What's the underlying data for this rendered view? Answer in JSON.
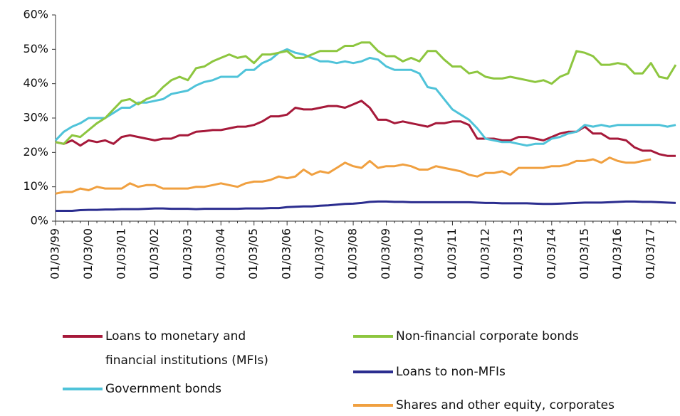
{
  "chart_data": {
    "type": "line",
    "categories": [
      "01/03/99",
      null,
      null,
      null,
      "01/03/00",
      null,
      null,
      null,
      "01/03/01",
      null,
      null,
      null,
      "01/03/02",
      null,
      null,
      null,
      "01/03/03",
      null,
      null,
      null,
      "01/03/04",
      null,
      null,
      null,
      "01/03/05",
      null,
      null,
      null,
      "01/03/06",
      null,
      null,
      null,
      "01/03/07",
      null,
      null,
      null,
      "01/03/08",
      null,
      null,
      null,
      "01/03/09",
      null,
      null,
      null,
      "01/03/10",
      null,
      null,
      null,
      "01/03/11",
      null,
      null,
      null,
      "01/03/12",
      null,
      null,
      null,
      "01/03/13",
      null,
      null,
      null,
      "01/03/14",
      null,
      null,
      null,
      "01/03/15",
      null,
      null,
      null,
      "01/03/16",
      null,
      null,
      null,
      "01/03/17",
      null,
      null,
      null
    ],
    "series": [
      {
        "name": "Loans to monetary and financial institutions (MFIs)",
        "color": "#a6193a",
        "values": [
          23,
          22.5,
          23.5,
          22,
          23.5,
          23,
          23.5,
          22.5,
          24.5,
          25,
          24.5,
          24,
          23.5,
          24,
          24,
          25,
          25,
          26,
          26.2,
          26.5,
          26.5,
          27,
          27.5,
          27.5,
          28,
          29,
          30.5,
          30.5,
          31,
          33,
          32.5,
          32.5,
          33,
          33.5,
          33.5,
          33,
          34,
          35,
          33,
          29.5,
          29.5,
          28.5,
          29,
          28.5,
          28,
          27.5,
          28.5,
          28.5,
          29,
          29,
          28,
          24,
          24,
          24,
          23.5,
          23.5,
          24.5,
          24.5,
          24,
          23.5,
          24.5,
          25.5,
          26,
          26,
          27.5,
          25.5,
          25.5,
          24,
          24,
          23.5,
          21.5,
          20.5,
          20.5,
          19.5,
          19,
          19
        ]
      },
      {
        "name": "Government bonds",
        "color": "#4fc3d9",
        "values": [
          23.5,
          26,
          27.5,
          28.5,
          30,
          30,
          30,
          31.5,
          33,
          33,
          34.5,
          34.5,
          35,
          35.5,
          37,
          37.5,
          38,
          39.5,
          40.5,
          41,
          42,
          42,
          42,
          44,
          44,
          46,
          47,
          49,
          50,
          49,
          48.5,
          47.5,
          46.5,
          46.5,
          46,
          46.5,
          46,
          46.5,
          47.5,
          47,
          45,
          44,
          44,
          44,
          43,
          39,
          38.5,
          35.5,
          32.5,
          31,
          29.5,
          27,
          24,
          23.5,
          23,
          23,
          22.5,
          22,
          22.5,
          22.5,
          24,
          24.5,
          25.5,
          26,
          28,
          27.5,
          28,
          27.5,
          28,
          28,
          28,
          28,
          28,
          28,
          27.5,
          28
        ]
      },
      {
        "name": "Non-financial corporate bonds",
        "color": "#8dc63f",
        "values": [
          23,
          22.5,
          25,
          24.5,
          26.5,
          28.5,
          30,
          32.5,
          35,
          35.5,
          34,
          35.5,
          36.5,
          39,
          41,
          42,
          41,
          44.5,
          45,
          46.5,
          47.5,
          48.5,
          47.5,
          48,
          46,
          48.5,
          48.5,
          49,
          49.5,
          47.5,
          47.5,
          48.5,
          49.5,
          49.5,
          49.5,
          51,
          51,
          52,
          52,
          49.5,
          48,
          48,
          46.5,
          47.5,
          46.5,
          49.5,
          49.5,
          47,
          45,
          45,
          43,
          43.5,
          42,
          41.5,
          41.5,
          42,
          41.5,
          41,
          40.5,
          41,
          40,
          42,
          43,
          49.5,
          49,
          48,
          45.5,
          45.5,
          46,
          45.5,
          43,
          43,
          46,
          42,
          41.5,
          45.5
        ]
      },
      {
        "name": "Loans to non-MFIs",
        "color": "#2b2d8f",
        "values": [
          3,
          3,
          3,
          3.2,
          3.3,
          3.3,
          3.4,
          3.4,
          3.5,
          3.5,
          3.5,
          3.6,
          3.7,
          3.7,
          3.6,
          3.6,
          3.6,
          3.5,
          3.6,
          3.6,
          3.6,
          3.6,
          3.6,
          3.7,
          3.7,
          3.7,
          3.8,
          3.8,
          4.1,
          4.2,
          4.3,
          4.3,
          4.5,
          4.6,
          4.8,
          5,
          5.1,
          5.3,
          5.6,
          5.7,
          5.7,
          5.6,
          5.6,
          5.5,
          5.5,
          5.5,
          5.5,
          5.5,
          5.5,
          5.5,
          5.5,
          5.4,
          5.3,
          5.3,
          5.2,
          5.2,
          5.2,
          5.2,
          5.1,
          5,
          5,
          5.1,
          5.2,
          5.3,
          5.4,
          5.4,
          5.4,
          5.5,
          5.6,
          5.7,
          5.7,
          5.6,
          5.6,
          5.5,
          5.4,
          5.3
        ]
      },
      {
        "name": "Shares and other equity, corporates",
        "color": "#f0a040",
        "values": [
          8,
          8.5,
          8.5,
          9.5,
          9,
          10,
          9.5,
          9.5,
          9.5,
          11,
          10,
          10.5,
          10.5,
          9.5,
          9.5,
          9.5,
          9.5,
          10,
          10,
          10.5,
          11,
          10.5,
          10,
          11,
          11.5,
          11.5,
          12,
          13,
          12.5,
          13,
          15,
          13.5,
          14.5,
          14,
          15.5,
          17,
          16,
          15.5,
          17.5,
          15.5,
          16,
          16,
          16.5,
          16,
          15,
          15,
          16,
          15.5,
          15,
          14.5,
          13.5,
          13,
          14,
          14,
          14.5,
          13.5,
          15.5,
          15.5,
          15.5,
          15.5,
          16,
          16,
          16.5,
          17.5,
          17.5,
          18,
          17,
          18.5,
          17.5,
          17,
          17,
          17.5,
          18,
          null,
          null,
          null
        ]
      }
    ],
    "ylim": [
      0,
      60
    ],
    "yticks": [
      {
        "value": 0,
        "label": "0%"
      },
      {
        "value": 10,
        "label": "10%"
      },
      {
        "value": 20,
        "label": "20%"
      },
      {
        "value": 30,
        "label": "30%"
      },
      {
        "value": 40,
        "label": "40%"
      },
      {
        "value": 50,
        "label": "50%"
      },
      {
        "value": 60,
        "label": "60%"
      }
    ]
  }
}
